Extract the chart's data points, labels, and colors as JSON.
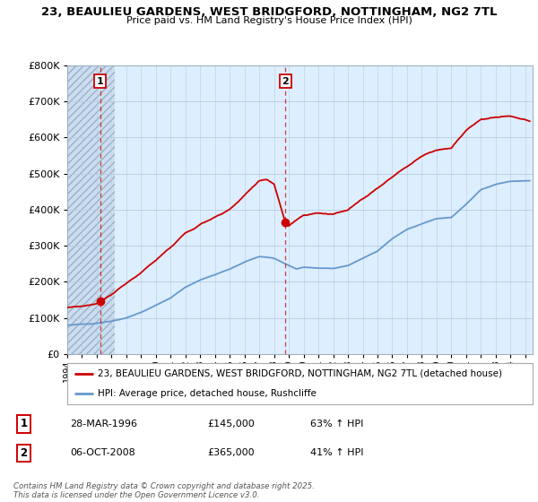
{
  "title1": "23, BEAULIEU GARDENS, WEST BRIDGFORD, NOTTINGHAM, NG2 7TL",
  "title2": "Price paid vs. HM Land Registry's House Price Index (HPI)",
  "ylim": [
    0,
    800000
  ],
  "yticks": [
    0,
    100000,
    200000,
    300000,
    400000,
    500000,
    600000,
    700000,
    800000
  ],
  "ytick_labels": [
    "£0",
    "£100K",
    "£200K",
    "£300K",
    "£400K",
    "£500K",
    "£600K",
    "£700K",
    "£800K"
  ],
  "bg_color": "#ddeeff",
  "hatch_bg_color": "#ccddf0",
  "grid_color": "#b8cce0",
  "red_line_color": "#cc0000",
  "blue_line_color": "#6699cc",
  "sale1_year": 1996.23,
  "sale1_price": 145000,
  "sale2_year": 2008.76,
  "sale2_price": 365000,
  "legend_line1": "23, BEAULIEU GARDENS, WEST BRIDGFORD, NOTTINGHAM, NG2 7TL (detached house)",
  "legend_line2": "HPI: Average price, detached house, Rushcliffe",
  "table_row1": [
    "1",
    "28-MAR-1996",
    "£145,000",
    "63% ↑ HPI"
  ],
  "table_row2": [
    "2",
    "06-OCT-2008",
    "£365,000",
    "41% ↑ HPI"
  ],
  "footnote": "Contains HM Land Registry data © Crown copyright and database right 2025.\nThis data is licensed under the Open Government Licence v3.0.",
  "xmin": 1994,
  "xmax": 2025.5,
  "hatch_end": 1997.2
}
